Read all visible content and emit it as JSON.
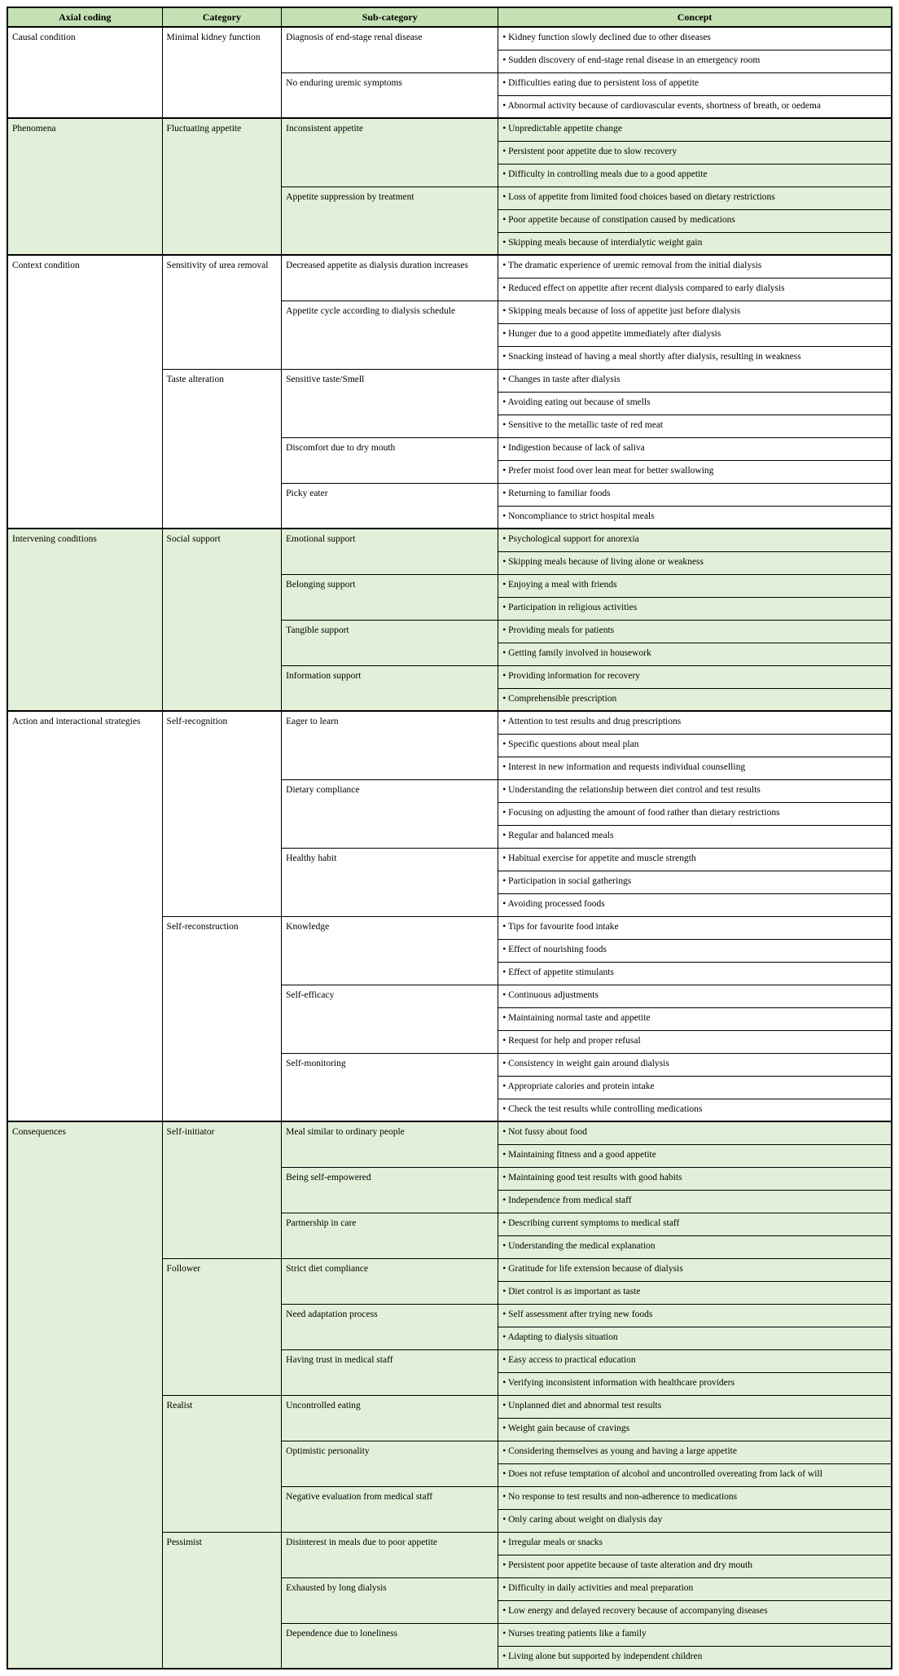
{
  "table": {
    "bullet": "•",
    "colors": {
      "header_bg": "#c5e0b3",
      "band_bg": "#e2efd9",
      "white_bg": "#ffffff",
      "border": "#000000"
    },
    "headers": [
      "Axial coding",
      "Category",
      "Sub-category",
      "Concept"
    ],
    "groups": [
      {
        "axial": "Causal condition",
        "shaded": false,
        "categories": [
          {
            "name": "Minimal kidney function",
            "subcategories": [
              {
                "name": "Diagnosis of end-stage renal disease",
                "concepts": [
                  "Kidney function slowly declined due to other diseases",
                  "Sudden discovery of end-stage renal disease in an emergency room"
                ]
              },
              {
                "name": "No enduring uremic symptoms",
                "concepts": [
                  "Difficulties eating due to persistent loss of appetite",
                  "Abnormal activity because of cardiovascular events, shortness of breath, or oedema"
                ]
              }
            ]
          }
        ]
      },
      {
        "axial": "Phenomena",
        "shaded": true,
        "categories": [
          {
            "name": "Fluctuating appetite",
            "subcategories": [
              {
                "name": "Inconsistent appetite",
                "concepts": [
                  "Unpredictable appetite change",
                  "Persistent poor appetite due to slow recovery",
                  "Difficulty in controlling meals due to a good appetite"
                ]
              },
              {
                "name": "Appetite suppression by treatment",
                "concepts": [
                  "Loss of appetite from limited food choices based on dietary restrictions",
                  "Poor appetite because of constipation caused by medications",
                  "Skipping meals because of interdialytic weight gain"
                ]
              }
            ]
          }
        ]
      },
      {
        "axial": "Context condition",
        "shaded": false,
        "categories": [
          {
            "name": "Sensitivity of urea removal",
            "subcategories": [
              {
                "name": "Decreased appetite as dialysis duration increases",
                "concepts": [
                  "The dramatic experience of uremic removal from the initial dialysis",
                  "Reduced effect on appetite after recent dialysis compared to early dialysis"
                ]
              },
              {
                "name": "Appetite cycle according to dialysis schedule",
                "concepts": [
                  "Skipping meals because of loss of appetite just before dialysis",
                  "Hunger due to a good appetite immediately after dialysis",
                  "Snacking instead of having a meal shortly after dialysis, resulting in weakness"
                ]
              }
            ]
          },
          {
            "name": "Taste alteration",
            "subcategories": [
              {
                "name": "Sensitive taste/Smell",
                "concepts": [
                  "Changes in taste after dialysis",
                  "Avoiding eating out because of smells",
                  "Sensitive to the metallic taste of red meat"
                ]
              },
              {
                "name": "Discomfort due to dry mouth",
                "concepts": [
                  "Indigestion because of lack of saliva",
                  "Prefer moist food over lean meat for better swallowing"
                ]
              },
              {
                "name": "Picky eater",
                "concepts": [
                  "Returning to familiar foods",
                  "Noncompliance to strict hospital meals"
                ]
              }
            ]
          }
        ]
      },
      {
        "axial": "Intervening conditions",
        "shaded": true,
        "categories": [
          {
            "name": "Social support",
            "subcategories": [
              {
                "name": "Emotional support",
                "concepts": [
                  "Psychological support for anorexia",
                  "Skipping meals because of living alone or weakness"
                ]
              },
              {
                "name": "Belonging support",
                "concepts": [
                  "Enjoying a meal with friends",
                  "Participation in religious activities"
                ]
              },
              {
                "name": "Tangible support",
                "concepts": [
                  "Providing meals for patients",
                  "Getting family involved in housework"
                ]
              },
              {
                "name": "Information support",
                "concepts": [
                  "Providing information for recovery",
                  "Comprehensible prescription"
                ]
              }
            ]
          }
        ]
      },
      {
        "axial": "Action and interactional strategies",
        "shaded": false,
        "categories": [
          {
            "name": "Self-recognition",
            "subcategories": [
              {
                "name": "Eager to learn",
                "concepts": [
                  "Attention to test results and drug prescriptions",
                  "Specific questions about meal plan",
                  "Interest in new information and requests individual counselling"
                ]
              },
              {
                "name": "Dietary compliance",
                "concepts": [
                  "Understanding the relationship between diet control and test results",
                  "Focusing on adjusting the amount of food rather than dietary restrictions",
                  "Regular and balanced meals"
                ]
              },
              {
                "name": "Healthy habit",
                "concepts": [
                  "Habitual exercise for appetite and muscle strength",
                  "Participation in social gatherings",
                  "Avoiding processed foods"
                ]
              }
            ]
          },
          {
            "name": "Self-reconstruction",
            "subcategories": [
              {
                "name": "Knowledge",
                "concepts": [
                  "Tips for favourite food intake",
                  "Effect of nourishing foods",
                  "Effect of appetite stimulants"
                ]
              },
              {
                "name": "Self-efficacy",
                "concepts": [
                  "Continuous adjustments",
                  "Maintaining normal taste and appetite",
                  "Request for help and proper refusal"
                ]
              },
              {
                "name": "Self-monitoring",
                "concepts": [
                  "Consistency in weight gain around dialysis",
                  "Appropriate calories and protein intake",
                  "Check the test results while controlling medications"
                ]
              }
            ]
          }
        ]
      },
      {
        "axial": "Consequences",
        "shaded": true,
        "categories": [
          {
            "name": "Self-initiator",
            "subcategories": [
              {
                "name": "Meal similar to ordinary people",
                "concepts": [
                  "Not fussy about food",
                  "Maintaining fitness and a good appetite"
                ]
              },
              {
                "name": "Being self-empowered",
                "concepts": [
                  "Maintaining good test results with good habits",
                  "Independence from medical staff"
                ]
              },
              {
                "name": "Partnership in care",
                "concepts": [
                  "Describing current symptoms to medical staff",
                  "Understanding the medical explanation"
                ]
              }
            ]
          },
          {
            "name": "Follower",
            "subcategories": [
              {
                "name": "Strict diet compliance",
                "concepts": [
                  "Gratitude for life extension because of dialysis",
                  "Diet control is as important as taste"
                ]
              },
              {
                "name": "Need adaptation process",
                "concepts": [
                  "Self assessment after trying new foods",
                  "Adapting to dialysis situation"
                ]
              },
              {
                "name": "Having trust in medical staff",
                "concepts": [
                  "Easy access to practical education",
                  "Verifying inconsistent information with healthcare providers"
                ]
              }
            ]
          },
          {
            "name": "Realist",
            "subcategories": [
              {
                "name": "Uncontrolled eating",
                "concepts": [
                  "Unplanned diet and abnormal test results",
                  "Weight gain because of cravings"
                ]
              },
              {
                "name": "Optimistic personality",
                "concepts": [
                  "Considering themselves as young and having a large appetite",
                  "Does not refuse temptation of alcohol and uncontrolled overeating from lack of will"
                ]
              },
              {
                "name": "Negative evaluation from medical staff",
                "concepts": [
                  "No response to test results and non-adherence to medications",
                  "Only caring about weight on dialysis day"
                ]
              }
            ]
          },
          {
            "name": "Pessimist",
            "subcategories": [
              {
                "name": "Disinterest in meals due to poor appetite",
                "concepts": [
                  "Irregular meals or snacks",
                  "Persistent poor appetite because of taste alteration and dry mouth"
                ]
              },
              {
                "name": "Exhausted by long dialysis",
                "concepts": [
                  "Difficulty in daily activities and meal preparation",
                  "Low energy and delayed recovery because of accompanying diseases"
                ]
              },
              {
                "name": "Dependence due to loneliness",
                "concepts": [
                  "Nurses treating patients like a family",
                  "Living alone but supported by independent children"
                ]
              }
            ]
          }
        ]
      }
    ]
  }
}
